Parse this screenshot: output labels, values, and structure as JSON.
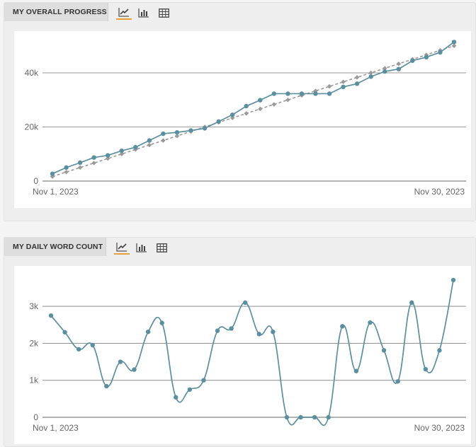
{
  "panels": [
    {
      "title": "MY OVERALL PROGRESS",
      "icons": [
        "line-chart-icon",
        "bar-chart-icon",
        "table-icon"
      ],
      "active_icon": "line-chart-icon"
    },
    {
      "title": "MY DAILY WORD COUNT",
      "icons": [
        "line-chart-icon",
        "bar-chart-icon",
        "table-icon"
      ],
      "active_icon": "line-chart-icon"
    }
  ],
  "colors": {
    "series": "#5b8fa0",
    "target": "#9a9a9a",
    "accent": "#e8a13a",
    "grid": "#9a9a9a"
  },
  "chart_data": [
    {
      "type": "line",
      "title": "MY OVERALL PROGRESS",
      "x_start_label": "Nov 1, 2023",
      "x_end_label": "Nov 30, 2023",
      "x": [
        "Nov 1, 2023",
        "Nov 2, 2023",
        "Nov 3, 2023",
        "Nov 4, 2023",
        "Nov 5, 2023",
        "Nov 6, 2023",
        "Nov 7, 2023",
        "Nov 8, 2023",
        "Nov 9, 2023",
        "Nov 10, 2023",
        "Nov 11, 2023",
        "Nov 12, 2023",
        "Nov 13, 2023",
        "Nov 14, 2023",
        "Nov 15, 2023",
        "Nov 16, 2023",
        "Nov 17, 2023",
        "Nov 18, 2023",
        "Nov 19, 2023",
        "Nov 20, 2023",
        "Nov 21, 2023",
        "Nov 22, 2023",
        "Nov 23, 2023",
        "Nov 24, 2023",
        "Nov 25, 2023",
        "Nov 26, 2023",
        "Nov 27, 2023",
        "Nov 28, 2023",
        "Nov 29, 2023",
        "Nov 30, 2023"
      ],
      "yticks": [
        0,
        20000,
        40000
      ],
      "ytick_labels": [
        "0",
        "20k",
        "40k"
      ],
      "ylim": [
        0,
        52000
      ],
      "grid": true,
      "series": [
        {
          "role": "actual",
          "style": "solid",
          "values": [
            2700,
            5000,
            6800,
            8700,
            9500,
            11200,
            12500,
            15000,
            17500,
            18000,
            18700,
            19500,
            22000,
            24500,
            27700,
            29900,
            32300,
            32300,
            32300,
            32300,
            32300,
            34800,
            36000,
            38600,
            40500,
            41400,
            44500,
            45800,
            47600,
            51400
          ]
        },
        {
          "role": "target",
          "style": "dashed",
          "values": [
            1667,
            3333,
            5000,
            6667,
            8333,
            10000,
            11667,
            13333,
            15000,
            16667,
            18333,
            20000,
            21667,
            23333,
            25000,
            26667,
            28333,
            30000,
            31667,
            33333,
            35000,
            36667,
            38333,
            40000,
            41667,
            43333,
            45000,
            46667,
            48333,
            50000
          ]
        }
      ]
    },
    {
      "type": "line",
      "title": "MY DAILY WORD COUNT",
      "x_start_label": "Nov 1, 2023",
      "x_end_label": "Nov 30, 2023",
      "x": [
        "Nov 1, 2023",
        "Nov 2, 2023",
        "Nov 3, 2023",
        "Nov 4, 2023",
        "Nov 5, 2023",
        "Nov 6, 2023",
        "Nov 7, 2023",
        "Nov 8, 2023",
        "Nov 9, 2023",
        "Nov 10, 2023",
        "Nov 11, 2023",
        "Nov 12, 2023",
        "Nov 13, 2023",
        "Nov 14, 2023",
        "Nov 15, 2023",
        "Nov 16, 2023",
        "Nov 17, 2023",
        "Nov 18, 2023",
        "Nov 19, 2023",
        "Nov 20, 2023",
        "Nov 21, 2023",
        "Nov 22, 2023",
        "Nov 23, 2023",
        "Nov 24, 2023",
        "Nov 25, 2023",
        "Nov 26, 2023",
        "Nov 27, 2023",
        "Nov 28, 2023",
        "Nov 29, 2023",
        "Nov 30, 2023"
      ],
      "yticks": [
        0,
        1000,
        2000,
        3000
      ],
      "ytick_labels": [
        "0",
        "1k",
        "2k",
        "3k"
      ],
      "ylim": [
        0,
        3900
      ],
      "grid": true,
      "series": [
        {
          "role": "daily",
          "style": "smooth",
          "values": [
            2750,
            2300,
            1840,
            1950,
            840,
            1500,
            1290,
            2310,
            2550,
            540,
            750,
            1000,
            2340,
            2400,
            3100,
            2250,
            2310,
            0,
            0,
            0,
            0,
            2460,
            1250,
            2560,
            1810,
            970,
            3100,
            1300,
            1810,
            3710
          ]
        }
      ]
    }
  ]
}
